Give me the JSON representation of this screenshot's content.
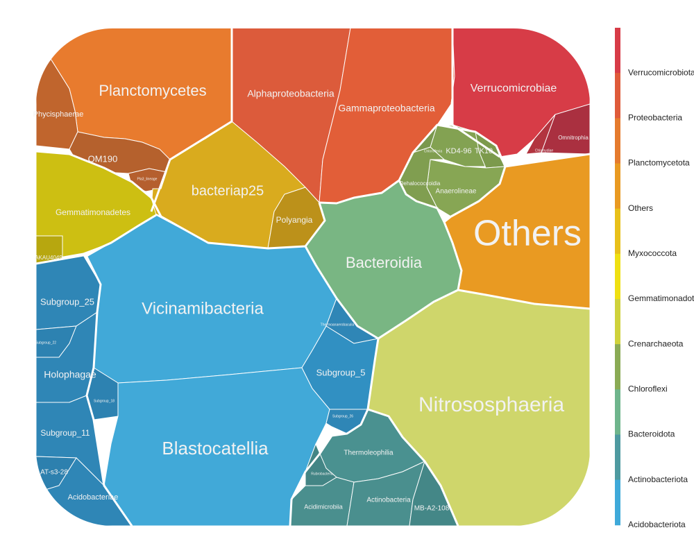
{
  "chart_data": {
    "type": "voronoi-treemap",
    "legend": {
      "placement": "right",
      "entries": [
        {
          "name": "Verrucomicrobiota",
          "color": "#d73c47"
        },
        {
          "name": "Proteobacteria",
          "color": "#df5b3a"
        },
        {
          "name": "Planctomycetota",
          "color": "#e57b2e"
        },
        {
          "name": "Others",
          "color": "#e99a22"
        },
        {
          "name": "Myxococcota",
          "color": "#e8c01a"
        },
        {
          "name": "Gemmatimonadota",
          "color": "#efe012"
        },
        {
          "name": "Crenarchaeota",
          "color": "#cfd23b"
        },
        {
          "name": "Chloroflexi",
          "color": "#8aab55"
        },
        {
          "name": "Bacteroidota",
          "color": "#6fb58c"
        },
        {
          "name": "Actinobacteriota",
          "color": "#4e9aa0"
        },
        {
          "name": "Acidobacteriota",
          "color": "#3fa9d9"
        }
      ]
    },
    "cells": [
      {
        "label": "Planctomycetes",
        "phylum": "Planctomycetota",
        "color": "#e87b2e"
      },
      {
        "label": "Phycisphaerae",
        "phylum": "Planctomycetota",
        "color": "#c0652d"
      },
      {
        "label": "OM190",
        "phylum": "Planctomycetota",
        "color": "#b5612d"
      },
      {
        "label": "Pla3_lineage",
        "phylum": "Planctomycetota",
        "color": "#b55f2e"
      },
      {
        "label": "Alphaproteobacteria",
        "phylum": "Proteobacteria",
        "color": "#dc5b3b"
      },
      {
        "label": "Gammaproteobacteria",
        "phylum": "Proteobacteria",
        "color": "#e25e38"
      },
      {
        "label": "Verrucomicrobiae",
        "phylum": "Verrucomicrobiota",
        "color": "#d73c47"
      },
      {
        "label": "Omnitrophia",
        "phylum": "Verrucomicrobiota",
        "color": "#aa3040"
      },
      {
        "label": "Chlamydiae",
        "phylum": "Verrucomicrobiota",
        "color": "#b2343f"
      },
      {
        "label": "bacteriap25",
        "phylum": "Myxococcota",
        "color": "#d9ab1e"
      },
      {
        "label": "Polyangia",
        "phylum": "Myxococcota",
        "color": "#bc911a"
      },
      {
        "label": "Gemmatimonadetes",
        "phylum": "Gemmatimonadota",
        "color": "#cdbf12"
      },
      {
        "label": "AKAU4049",
        "phylum": "Gemmatimonadota",
        "color": "#b7a70f"
      },
      {
        "label": "KD4-96",
        "phylum": "Chloroflexi",
        "color": "#83a252"
      },
      {
        "label": "TK10",
        "phylum": "Chloroflexi",
        "color": "#7c9a4c"
      },
      {
        "label": "Anaerolineae",
        "phylum": "Chloroflexi",
        "color": "#87a654"
      },
      {
        "label": "Dehalococcoidia",
        "phylum": "Chloroflexi",
        "color": "#809e50"
      },
      {
        "label": "Chloroflexia",
        "phylum": "Chloroflexi",
        "color": "#7a984d"
      },
      {
        "label": "Others",
        "phylum": "Others",
        "color": "#e99a22"
      },
      {
        "label": "Bacteroidia",
        "phylum": "Bacteroidota",
        "color": "#79b683"
      },
      {
        "label": "Nitrososphaeria",
        "phylum": "Crenarchaeota",
        "color": "#cfd66b"
      },
      {
        "label": "Vicinamibacteria",
        "phylum": "Acidobacteriota",
        "color": "#41a9d8"
      },
      {
        "label": "Blastocatellia",
        "phylum": "Acidobacteriota",
        "color": "#41a9d8"
      },
      {
        "label": "Subgroup_25",
        "phylum": "Acidobacteriota",
        "color": "#2f86b6"
      },
      {
        "label": "Subgroup_22",
        "phylum": "Acidobacteriota",
        "color": "#2d82b1"
      },
      {
        "label": "Holophagae",
        "phylum": "Acidobacteriota",
        "color": "#2f86b6"
      },
      {
        "label": "Subgroup_18",
        "phylum": "Acidobacteriota",
        "color": "#2d82b1"
      },
      {
        "label": "Subgroup_11",
        "phylum": "Acidobacteriota",
        "color": "#2f86b6"
      },
      {
        "label": "AT-s3-28",
        "phylum": "Acidobacteriota",
        "color": "#2d80ae"
      },
      {
        "label": "Acidobacteriae",
        "phylum": "Acidobacteriota",
        "color": "#2f86b6"
      },
      {
        "label": "Thermoanaerobaculia",
        "phylum": "Acidobacteriota",
        "color": "#2f86b6"
      },
      {
        "label": "Subgroup_5",
        "phylum": "Acidobacteriota",
        "color": "#3190c2"
      },
      {
        "label": "Subgroup_26",
        "phylum": "Acidobacteriota",
        "color": "#2f86b6"
      },
      {
        "label": "Thermoleophilia",
        "phylum": "Actinobacteriota",
        "color": "#4a9190"
      },
      {
        "label": "Rubrobacteria",
        "phylum": "Actinobacteriota",
        "color": "#438585"
      },
      {
        "label": "Acidimicrobiia",
        "phylum": "Actinobacteriota",
        "color": "#4a8f8e"
      },
      {
        "label": "Actinobacteria",
        "phylum": "Actinobacteriota",
        "color": "#4a8f8e"
      },
      {
        "label": "MB-A2-108",
        "phylum": "Actinobacteriota",
        "color": "#448787"
      }
    ]
  }
}
